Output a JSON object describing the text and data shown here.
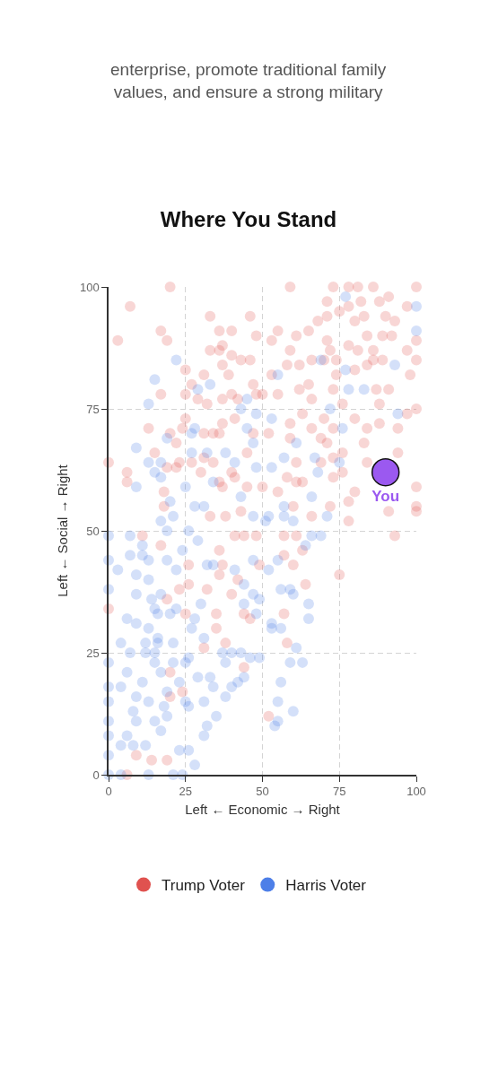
{
  "chart_data": {
    "type": "scatter",
    "title": "Where You Stand",
    "xlabel": "Left ← Economic → Right",
    "ylabel": "Left ← Social → Right",
    "annotations": [
      "enterprise, promote traditional family values, and ensure a strong military"
    ],
    "xlim": [
      0,
      100
    ],
    "ylim": [
      0,
      100
    ],
    "xticks": [
      0,
      25,
      50,
      75,
      100
    ],
    "yticks": [
      0,
      25,
      50,
      75,
      100
    ],
    "grid": true,
    "legend": "bottom",
    "marker": "circle",
    "series": [
      {
        "name": "Trump Voter",
        "color": "#e0524f",
        "x": [
          20,
          7,
          3,
          17,
          19,
          25,
          25,
          17,
          33,
          36,
          40,
          46,
          48,
          33,
          36,
          37,
          40,
          43,
          46,
          37,
          31,
          39,
          27,
          47,
          48,
          29,
          32,
          37,
          40,
          42,
          25,
          24,
          13,
          20,
          22,
          15,
          0,
          19,
          22,
          23,
          27,
          6,
          6,
          18,
          30,
          31,
          34,
          36,
          37,
          41,
          47,
          45,
          31,
          34,
          36,
          40,
          41,
          37,
          45,
          38,
          33,
          43,
          18,
          100,
          59,
          73,
          78,
          81,
          86,
          71,
          78,
          82,
          88,
          91,
          97,
          75,
          80,
          83,
          90,
          93,
          71,
          68,
          65,
          55,
          53,
          61,
          71,
          84,
          89,
          92,
          100,
          59,
          72,
          78,
          81,
          86,
          97,
          70,
          74,
          66,
          86,
          89,
          100,
          58,
          53,
          62,
          74,
          80,
          84,
          98,
          62,
          65,
          73,
          87,
          91,
          50,
          55,
          66,
          76,
          88,
          97,
          100,
          59,
          63,
          66,
          70,
          73,
          80,
          84,
          88,
          94,
          52,
          59,
          69,
          71,
          83,
          73,
          76,
          94,
          61,
          69,
          84,
          58,
          73,
          76,
          100,
          50,
          55,
          61,
          63,
          80,
          72,
          78,
          91,
          100,
          100,
          60,
          66,
          78,
          93,
          6,
          9,
          14,
          19,
          0,
          11,
          20,
          20,
          24,
          44,
          35,
          38,
          31,
          25,
          19,
          23,
          26,
          32,
          35,
          40,
          44,
          46,
          17,
          26,
          36,
          37,
          42,
          49,
          36,
          41,
          44,
          48,
          75,
          64,
          57,
          58,
          52,
          63,
          60,
          57,
          61,
          57
        ],
        "values": [
          100,
          96,
          89,
          91,
          89,
          83,
          78,
          78,
          94,
          91,
          91,
          94,
          90,
          87,
          87,
          88,
          86,
          85,
          85,
          84,
          82,
          82,
          80,
          80,
          78,
          77,
          76,
          77,
          78,
          77,
          73,
          71,
          71,
          70,
          68,
          66,
          64,
          63,
          63,
          64,
          64,
          62,
          60,
          58,
          62,
          70,
          70,
          70,
          72,
          73,
          70,
          66,
          65,
          64,
          60,
          62,
          61,
          59,
          59,
          53,
          53,
          54,
          55,
          100,
          100,
          100,
          100,
          100,
          100,
          97,
          96,
          97,
          97,
          98,
          96,
          95,
          93,
          94,
          94,
          93,
          94,
          93,
          91,
          91,
          89,
          90,
          89,
          90,
          90,
          90,
          89,
          87,
          87,
          88,
          87,
          87,
          87,
          85,
          85,
          85,
          85,
          85,
          85,
          84,
          82,
          84,
          82,
          83,
          84,
          82,
          79,
          80,
          79,
          79,
          79,
          78,
          78,
          77,
          76,
          76,
          74,
          75,
          72,
          74,
          71,
          73,
          71,
          73,
          71,
          72,
          71,
          70,
          69,
          69,
          68,
          68,
          65,
          66,
          66,
          64,
          64,
          64,
          61,
          61,
          62,
          59,
          59,
          58,
          60,
          60,
          58,
          55,
          56,
          54,
          55,
          54,
          55,
          53,
          52,
          49,
          0,
          4,
          3,
          3,
          34,
          49,
          16,
          21,
          17,
          22,
          30,
          27,
          26,
          33,
          36,
          38,
          39,
          38,
          33,
          37,
          33,
          32,
          47,
          43,
          41,
          43,
          40,
          43,
          46,
          49,
          49,
          49,
          41,
          39,
          33,
          27,
          12,
          46,
          43,
          45,
          49,
          49
        ]
      },
      {
        "name": "Harris Voter",
        "color": "#4d7fe8",
        "x": [
          22,
          15,
          13,
          33,
          29,
          45,
          48,
          43,
          19,
          9,
          13,
          17,
          15,
          17,
          9,
          25,
          27,
          28,
          45,
          47,
          32,
          27,
          38,
          41,
          34,
          43,
          48,
          31,
          28,
          47,
          20,
          17,
          21,
          100,
          77,
          100,
          69,
          93,
          55,
          77,
          78,
          83,
          72,
          94,
          53,
          76,
          61,
          57,
          67,
          75,
          53,
          68,
          66,
          57,
          52,
          57,
          60,
          71,
          51,
          0,
          4,
          13,
          21,
          24,
          0,
          0,
          0,
          0,
          0,
          0,
          0,
          0,
          0,
          6,
          4,
          3,
          7,
          9,
          9,
          9,
          11,
          11,
          7,
          13,
          14,
          15,
          13,
          7,
          6,
          4,
          9,
          13,
          15,
          15,
          11,
          8,
          9,
          15,
          17,
          6,
          4,
          8,
          12,
          19,
          19,
          18,
          23,
          26,
          25,
          23,
          26,
          28,
          31,
          32,
          35,
          31,
          29,
          33,
          34,
          38,
          42,
          44,
          40,
          38,
          37,
          40,
          43,
          46,
          49,
          26,
          25,
          17,
          21,
          12,
          16,
          21,
          12,
          16,
          27,
          31,
          22,
          20,
          28,
          16,
          17,
          30,
          44,
          48,
          47,
          49,
          13,
          19,
          22,
          24,
          29,
          32,
          34,
          41,
          44,
          47,
          19,
          26,
          56,
          59,
          60,
          65,
          65,
          53,
          53,
          56,
          61,
          59,
          63,
          56,
          55,
          60,
          55,
          54,
          66,
          69,
          64,
          55,
          52
        ],
        "values": [
          85,
          81,
          76,
          80,
          79,
          77,
          74,
          75,
          69,
          67,
          64,
          64,
          62,
          61,
          59,
          59,
          70,
          71,
          71,
          68,
          66,
          66,
          66,
          64,
          60,
          57,
          63,
          55,
          55,
          53,
          56,
          52,
          53,
          96,
          98,
          91,
          85,
          84,
          82,
          83,
          79,
          79,
          75,
          74,
          73,
          71,
          68,
          65,
          65,
          64,
          63,
          62,
          57,
          55,
          53,
          53,
          52,
          53,
          52,
          0,
          0,
          0,
          0,
          0,
          4,
          8,
          11,
          15,
          18,
          23,
          38,
          44,
          49,
          32,
          27,
          42,
          45,
          31,
          37,
          41,
          45,
          47,
          49,
          40,
          36,
          34,
          30,
          25,
          21,
          18,
          16,
          15,
          23,
          25,
          19,
          13,
          11,
          11,
          9,
          8,
          6,
          6,
          6,
          12,
          17,
          14,
          19,
          14,
          15,
          5,
          5,
          2,
          8,
          10,
          12,
          15,
          20,
          20,
          18,
          16,
          19,
          20,
          18,
          23,
          25,
          25,
          25,
          24,
          24,
          24,
          23,
          21,
          23,
          25,
          27,
          27,
          27,
          28,
          30,
          28,
          34,
          33,
          32,
          33,
          37,
          35,
          35,
          33,
          37,
          36,
          44,
          44,
          42,
          46,
          48,
          43,
          43,
          42,
          39,
          44,
          50,
          50,
          38,
          38,
          37,
          35,
          32,
          31,
          30,
          30,
          26,
          23,
          23,
          19,
          15,
          13,
          11,
          10,
          49,
          49,
          47,
          44,
          42
        ]
      },
      {
        "name": "You",
        "color": "#9b59f0",
        "x": [
          90
        ],
        "values": [
          62
        ]
      }
    ]
  }
}
